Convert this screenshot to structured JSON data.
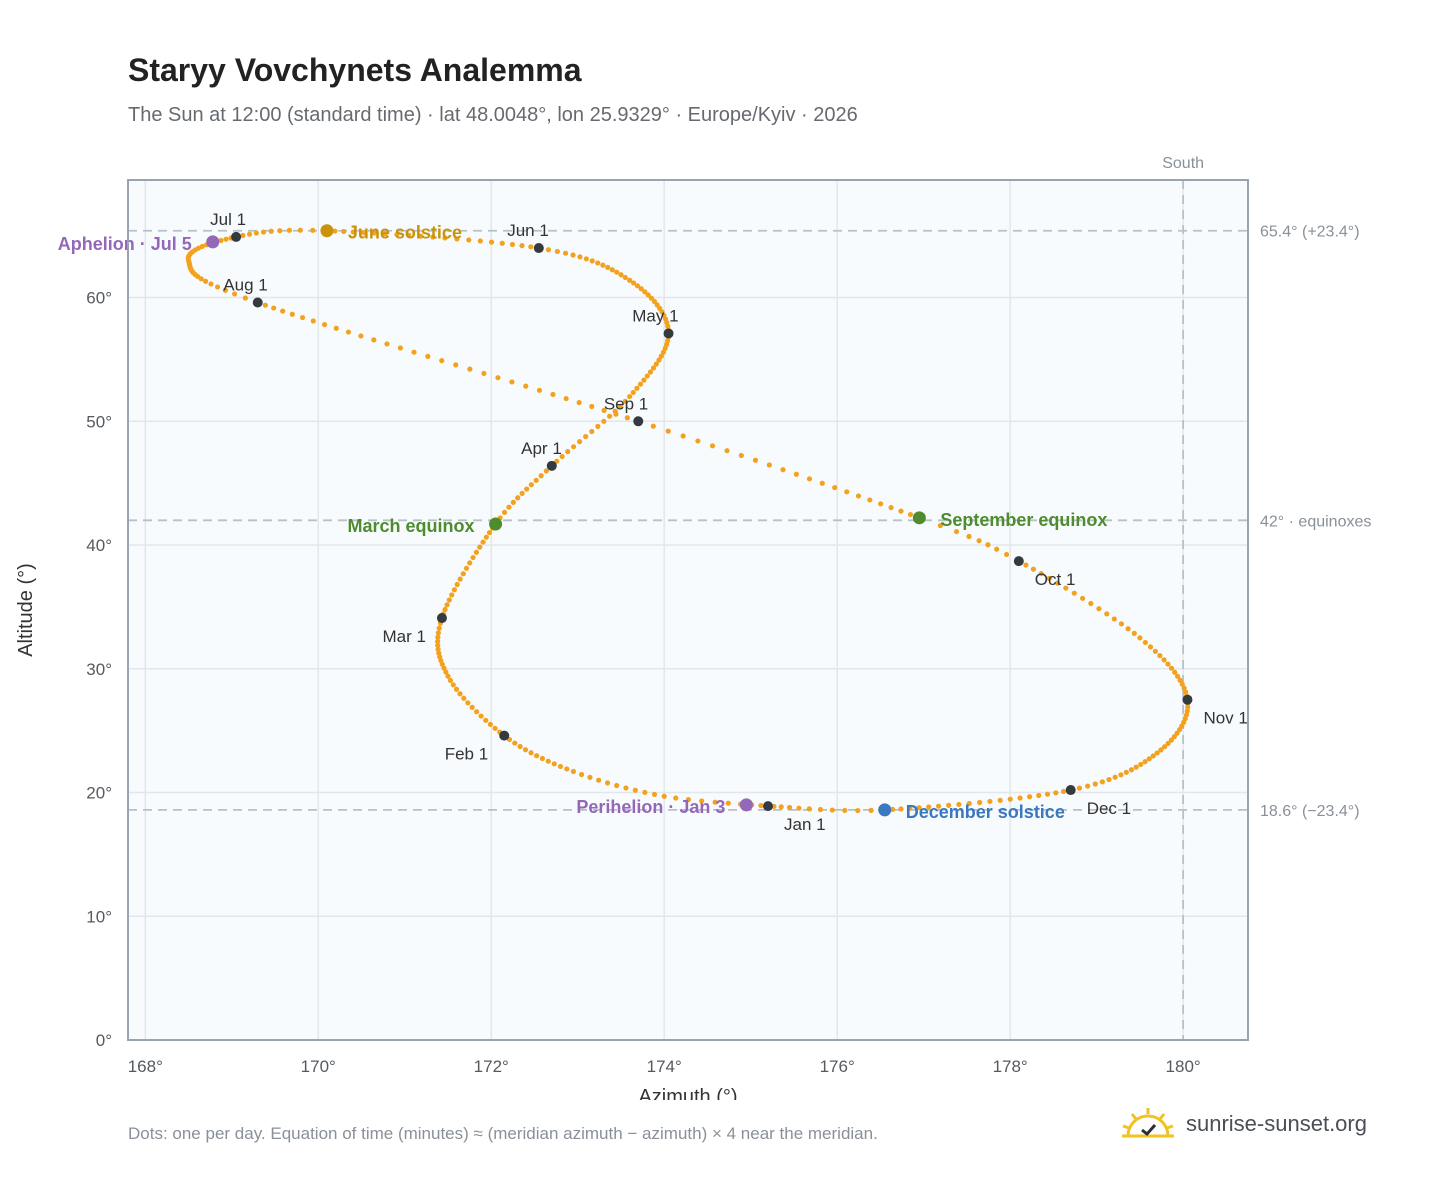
{
  "header": {
    "title": "Staryy Vovchynets Analemma",
    "subtitle": "The Sun at 12:00 (standard time) · lat 48.0048°, lon 25.9329° · Europe/Kyiv · 2026"
  },
  "footer": {
    "note": "Dots: one per day. Equation of time (minutes) ≈ (meridian azimuth − azimuth) × 4 near the meridian.",
    "brand": "sunrise-sunset.org",
    "brand_icon": "sun-logo-icon"
  },
  "colors": {
    "path": "#f2a21f",
    "month_dot": "#333a40",
    "solstice_june": "#c8930a",
    "equinox": "#4e8c2e",
    "solstice_december": "#3a78c0",
    "apsis": "#9468b8",
    "grid": "#e3e7eb",
    "plot_bg": "#f8fbfd",
    "reference_line": "#b8c0c8"
  },
  "chart_data": {
    "type": "scatter",
    "title": "Staryy Vovchynets Analemma",
    "xlabel": "Azimuth (°)",
    "ylabel": "Altitude (°)",
    "xlim": [
      167.8,
      180.75
    ],
    "ylim": [
      0,
      69.5
    ],
    "x_ticks": [
      168,
      170,
      172,
      174,
      176,
      178,
      180
    ],
    "y_ticks": [
      0,
      10,
      20,
      30,
      40,
      50,
      60
    ],
    "tick_suffix": "°",
    "grid": true,
    "legend": "none",
    "south_marker": {
      "azimuth": 180,
      "label": "South"
    },
    "reference_lines": [
      {
        "altitude": 65.4,
        "label": "65.4° (+23.4°)"
      },
      {
        "altitude": 42,
        "label": "42° · equinoxes"
      },
      {
        "altitude": 18.6,
        "label": "18.6° (−23.4°)"
      }
    ],
    "path_keypoints": [
      {
        "day": 1,
        "az": 175.2,
        "alt": 18.9
      },
      {
        "day": 10,
        "az": 174.0,
        "alt": 19.7
      },
      {
        "day": 20,
        "az": 172.95,
        "alt": 21.7
      },
      {
        "day": 32,
        "az": 172.15,
        "alt": 24.6
      },
      {
        "day": 46,
        "az": 171.5,
        "alt": 29.4
      },
      {
        "day": 60,
        "az": 171.43,
        "alt": 34.1
      },
      {
        "day": 79,
        "az": 172.05,
        "alt": 41.7
      },
      {
        "day": 91,
        "az": 172.7,
        "alt": 46.4
      },
      {
        "day": 105,
        "az": 173.6,
        "alt": 52.0
      },
      {
        "day": 121,
        "az": 174.05,
        "alt": 57.1
      },
      {
        "day": 137,
        "az": 173.6,
        "alt": 61.4
      },
      {
        "day": 152,
        "az": 172.55,
        "alt": 64.0
      },
      {
        "day": 172,
        "az": 170.1,
        "alt": 65.4
      },
      {
        "day": 182,
        "az": 169.05,
        "alt": 64.9
      },
      {
        "day": 196,
        "az": 168.5,
        "alt": 63.0
      },
      {
        "day": 213,
        "az": 169.3,
        "alt": 59.6
      },
      {
        "day": 244,
        "az": 173.7,
        "alt": 50.0
      },
      {
        "day": 266,
        "az": 176.95,
        "alt": 42.2
      },
      {
        "day": 274,
        "az": 178.1,
        "alt": 38.7
      },
      {
        "day": 290,
        "az": 179.5,
        "alt": 32.5
      },
      {
        "day": 305,
        "az": 180.05,
        "alt": 27.5
      },
      {
        "day": 320,
        "az": 179.7,
        "alt": 23.2
      },
      {
        "day": 335,
        "az": 178.7,
        "alt": 20.2
      },
      {
        "day": 355,
        "az": 176.55,
        "alt": 18.6
      },
      {
        "day": 366,
        "az": 175.2,
        "alt": 18.9
      }
    ],
    "month_markers": [
      {
        "label": "Jan 1",
        "az": 175.2,
        "alt": 18.9,
        "pos": "below-right"
      },
      {
        "label": "Feb 1",
        "az": 172.15,
        "alt": 24.6,
        "pos": "below-left"
      },
      {
        "label": "Mar 1",
        "az": 171.43,
        "alt": 34.1,
        "pos": "below-left"
      },
      {
        "label": "Apr 1",
        "az": 172.7,
        "alt": 46.4,
        "pos": "above-left"
      },
      {
        "label": "May 1",
        "az": 174.05,
        "alt": 57.1,
        "pos": "above-left"
      },
      {
        "label": "Jun 1",
        "az": 172.55,
        "alt": 64.0,
        "pos": "above-left"
      },
      {
        "label": "Jul 1",
        "az": 169.05,
        "alt": 64.9,
        "pos": "above-left"
      },
      {
        "label": "Aug 1",
        "az": 169.3,
        "alt": 59.6,
        "pos": "above-left"
      },
      {
        "label": "Sep 1",
        "az": 173.7,
        "alt": 50.0,
        "pos": "above-left"
      },
      {
        "label": "Oct 1",
        "az": 178.1,
        "alt": 38.7,
        "pos": "below-right"
      },
      {
        "label": "Nov 1",
        "az": 180.05,
        "alt": 27.5,
        "pos": "below-right"
      },
      {
        "label": "Dec 1",
        "az": 178.7,
        "alt": 20.2,
        "pos": "below-right"
      }
    ],
    "events": [
      {
        "label": "June solstice",
        "az": 170.1,
        "alt": 65.4,
        "color": "#c8930a",
        "side": "right"
      },
      {
        "label": "March equinox",
        "az": 172.05,
        "alt": 41.7,
        "color": "#4e8c2e",
        "side": "left"
      },
      {
        "label": "September equinox",
        "az": 176.95,
        "alt": 42.2,
        "color": "#4e8c2e",
        "side": "right"
      },
      {
        "label": "December solstice",
        "az": 176.55,
        "alt": 18.6,
        "color": "#3a78c0",
        "side": "right"
      },
      {
        "label": "Aphelion · Jul 5",
        "az": 168.78,
        "alt": 64.5,
        "color": "#9468b8",
        "side": "left"
      },
      {
        "label": "Perihelion · Jan 3",
        "az": 174.95,
        "alt": 19.0,
        "color": "#9468b8",
        "side": "left"
      }
    ]
  }
}
